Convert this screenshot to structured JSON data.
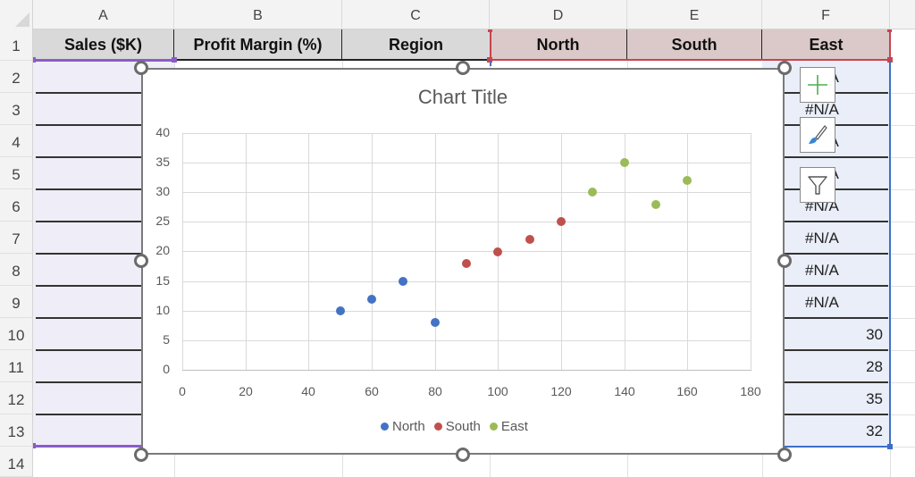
{
  "sheet": {
    "columns": [
      "A",
      "B",
      "C",
      "D",
      "E",
      "F"
    ],
    "rows": [
      "1",
      "2",
      "3",
      "4",
      "5",
      "6",
      "7",
      "8",
      "9",
      "10",
      "11",
      "12",
      "13",
      "14"
    ],
    "row1_headers": {
      "A": "Sales ($K)",
      "B": "Profit Margin (%)",
      "C": "Region",
      "D": "North",
      "E": "South",
      "F": "East"
    },
    "column_F_visible": [
      "#N/A",
      "#N/A",
      "#N/A",
      "#N/A",
      "#N/A",
      "#N/A",
      "#N/A",
      "#N/A",
      "30",
      "28",
      "35",
      "32"
    ]
  },
  "chart_tools": {
    "chart_elements": "chart-elements-plus-icon",
    "chart_styles": "chart-styles-brush-icon",
    "chart_filters": "chart-filters-funnel-icon"
  },
  "colors": {
    "north": "#4472c4",
    "south": "#c0504d",
    "east": "#9bbb59",
    "header_gray": "#d9d9d9",
    "header_pink": "#dbc9c9",
    "sel_purple": "#8a5cc7",
    "sel_red": "#c9434f",
    "sel_blue": "#3d6fc6"
  },
  "chart_data": {
    "type": "scatter",
    "title": "Chart Title",
    "xlabel": "",
    "ylabel": "",
    "xlim": [
      0,
      180
    ],
    "ylim": [
      0,
      40
    ],
    "x_ticks": [
      "0",
      "20",
      "40",
      "60",
      "80",
      "100",
      "120",
      "140",
      "160",
      "180"
    ],
    "y_ticks": [
      "0",
      "5",
      "10",
      "15",
      "20",
      "25",
      "30",
      "35",
      "40"
    ],
    "grid": true,
    "legend_position": "bottom",
    "legend": [
      "North",
      "South",
      "East"
    ],
    "series": [
      {
        "name": "North",
        "color": "#4472c4",
        "points": [
          [
            50,
            10
          ],
          [
            60,
            12
          ],
          [
            70,
            15
          ],
          [
            80,
            8
          ]
        ]
      },
      {
        "name": "South",
        "color": "#c0504d",
        "points": [
          [
            90,
            18
          ],
          [
            100,
            20
          ],
          [
            110,
            22
          ],
          [
            120,
            25
          ]
        ]
      },
      {
        "name": "East",
        "color": "#9bbb59",
        "points": [
          [
            130,
            30
          ],
          [
            140,
            35
          ],
          [
            150,
            28
          ],
          [
            160,
            32
          ]
        ]
      }
    ]
  }
}
